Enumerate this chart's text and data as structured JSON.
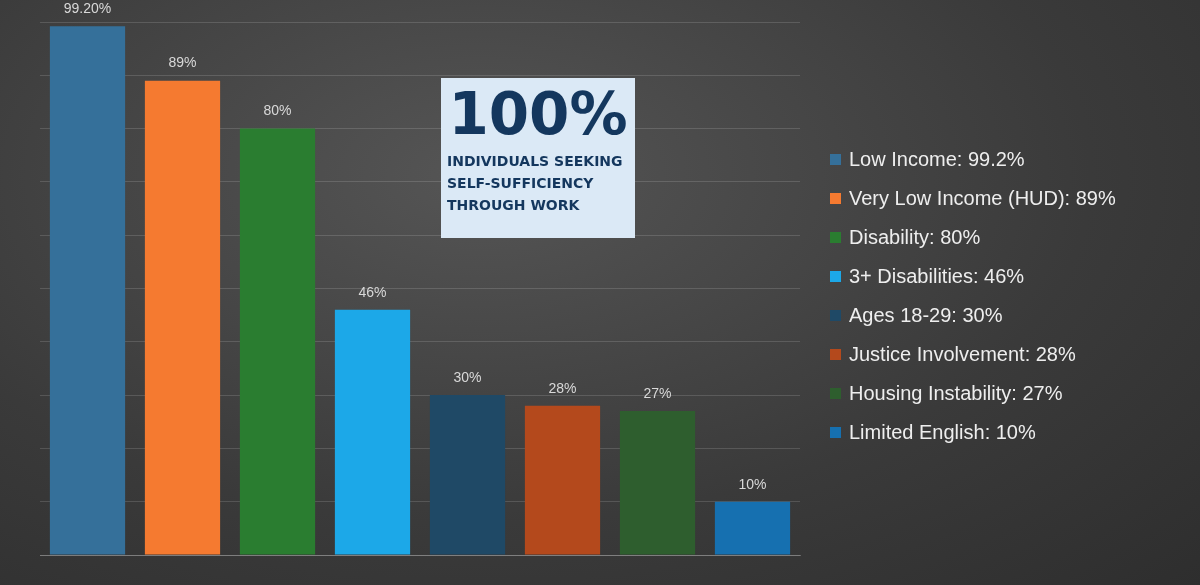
{
  "chart_data": {
    "type": "bar",
    "stacked": true,
    "categories": [
      null,
      null,
      null,
      null,
      null,
      null,
      null,
      null
    ],
    "ylim": [
      0,
      100
    ],
    "yticks": [
      0,
      10,
      20,
      30,
      40,
      50,
      60,
      70,
      80,
      90,
      100
    ],
    "grid": "y",
    "tick_labels": false,
    "legend": "right",
    "annotations": [
      "100%",
      "INDIVIDUALS SEEKING SELF-SUFFICIENCY THROUGH WORK"
    ],
    "series": [
      {
        "name": "Low Income: 99.2%",
        "color": "#35709a",
        "values": [
          99.2,
          null,
          null,
          null,
          null,
          null,
          null,
          null
        ],
        "value_labels": [
          "99.20%",
          null,
          null,
          null,
          null,
          null,
          null,
          null
        ]
      },
      {
        "name": "Very Low Income (HUD): 89%",
        "color": "#f57a30",
        "values": [
          null,
          89,
          null,
          null,
          null,
          null,
          null,
          null
        ],
        "value_labels": [
          null,
          "89%",
          null,
          null,
          null,
          null,
          null,
          null
        ]
      },
      {
        "name": "Disability: 80%",
        "color": "#2a7d30",
        "values": [
          null,
          null,
          80,
          null,
          null,
          null,
          null,
          null
        ],
        "value_labels": [
          null,
          null,
          "80%",
          null,
          null,
          null,
          null,
          null
        ]
      },
      {
        "name": "3+ Disabilities: 46%",
        "color": "#1ca8e8",
        "values": [
          null,
          null,
          null,
          46,
          null,
          null,
          null,
          null
        ],
        "value_labels": [
          null,
          null,
          null,
          "46%",
          null,
          null,
          null,
          null
        ]
      },
      {
        "name": "Ages 18-29: 30%",
        "color": "#1f4966",
        "values": [
          null,
          null,
          null,
          null,
          30,
          null,
          null,
          null
        ],
        "value_labels": [
          null,
          null,
          null,
          null,
          "30%",
          null,
          null,
          null
        ]
      },
      {
        "name": "Justice Involvement: 28%",
        "color": "#b4491c",
        "values": [
          null,
          null,
          null,
          null,
          null,
          28,
          null,
          null
        ],
        "value_labels": [
          null,
          null,
          null,
          null,
          null,
          "28%",
          null,
          null
        ]
      },
      {
        "name": "Housing Instability: 27%",
        "color": "#2e5e2e",
        "values": [
          null,
          null,
          null,
          null,
          null,
          null,
          27,
          null
        ],
        "value_labels": [
          null,
          null,
          null,
          null,
          null,
          null,
          "27%",
          null
        ]
      },
      {
        "name": "Limited English: 10%",
        "color": "#1670b0",
        "values": [
          null,
          null,
          null,
          null,
          null,
          null,
          null,
          10
        ],
        "value_labels": [
          null,
          null,
          null,
          null,
          null,
          null,
          null,
          "10%"
        ]
      }
    ]
  }
}
